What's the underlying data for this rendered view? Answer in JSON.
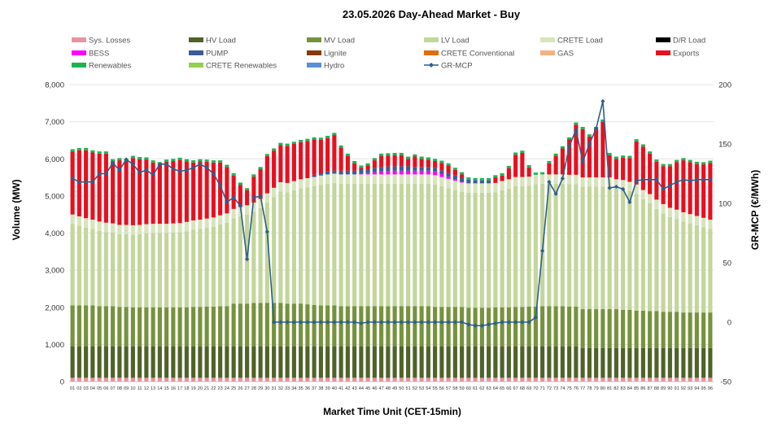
{
  "chart_data": {
    "type": "bar",
    "title": "23.05.2026  Day-Ahead Market - Buy",
    "xlabel": "Market Time Unit (CET-15min)",
    "ylabel": "Volume (MW)",
    "y2label": "GR-MCP (€/MWh)",
    "ylim": [
      0,
      8000
    ],
    "y2lim": [
      -50,
      200
    ],
    "yticks": [
      "0",
      "1,000",
      "2,000",
      "3,000",
      "4,000",
      "5,000",
      "6,000",
      "7,000",
      "8,000"
    ],
    "y2ticks": [
      "-50",
      "0",
      "50",
      "100",
      "150",
      "200"
    ],
    "categories": [
      "01",
      "02",
      "03",
      "04",
      "05",
      "06",
      "07",
      "08",
      "09",
      "10",
      "11",
      "12",
      "13",
      "14",
      "15",
      "16",
      "17",
      "18",
      "19",
      "20",
      "21",
      "22",
      "23",
      "24",
      "25",
      "26",
      "27",
      "28",
      "29",
      "30",
      "31",
      "32",
      "33",
      "34",
      "35",
      "36",
      "37",
      "38",
      "39",
      "40",
      "41",
      "42",
      "43",
      "44",
      "45",
      "46",
      "47",
      "48",
      "49",
      "50",
      "51",
      "52",
      "53",
      "54",
      "55",
      "56",
      "57",
      "58",
      "59",
      "60",
      "61",
      "62",
      "63",
      "64",
      "65",
      "66",
      "67",
      "68",
      "69",
      "70",
      "71",
      "72",
      "73",
      "74",
      "75",
      "76",
      "77",
      "78",
      "79",
      "80",
      "81",
      "82",
      "83",
      "84",
      "85",
      "86",
      "87",
      "88",
      "89",
      "90",
      "91",
      "92",
      "93",
      "94",
      "95",
      "96"
    ],
    "legend": [
      {
        "name": "Sys. Losses",
        "color": "#e6959e",
        "kind": "bar"
      },
      {
        "name": "HV Load",
        "color": "#4f6228",
        "kind": "bar"
      },
      {
        "name": "MV Load",
        "color": "#76923c",
        "kind": "bar"
      },
      {
        "name": "LV Load",
        "color": "#c3d69b",
        "kind": "bar"
      },
      {
        "name": "CRETE Load",
        "color": "#d8e4bc",
        "kind": "bar"
      },
      {
        "name": "D/R Load",
        "color": "#000000",
        "kind": "bar"
      },
      {
        "name": "BESS",
        "color": "#ff00ff",
        "kind": "bar"
      },
      {
        "name": "PUMP",
        "color": "#3c5a96",
        "kind": "bar"
      },
      {
        "name": "Lignite",
        "color": "#843c0c",
        "kind": "bar"
      },
      {
        "name": "CRETE Conventional",
        "color": "#e26b0a",
        "kind": "bar"
      },
      {
        "name": "GAS",
        "color": "#f4b183",
        "kind": "bar"
      },
      {
        "name": "Exports",
        "color": "#e80f1e",
        "kind": "bar"
      },
      {
        "name": "Renewables",
        "color": "#1db352",
        "kind": "bar"
      },
      {
        "name": "CRETE Renewables",
        "color": "#92d050",
        "kind": "bar"
      },
      {
        "name": "Hydro",
        "color": "#5b8fd6",
        "kind": "bar"
      },
      {
        "name": "GR-MCP",
        "color": "#2e5f8a",
        "kind": "line"
      }
    ],
    "series": [
      {
        "name": "Sys. Losses",
        "values": [
          100,
          100,
          100,
          100,
          100,
          100,
          100,
          100,
          100,
          100,
          100,
          100,
          100,
          100,
          100,
          100,
          100,
          100,
          100,
          100,
          100,
          100,
          100,
          100,
          100,
          100,
          100,
          100,
          100,
          100,
          100,
          100,
          100,
          100,
          100,
          100,
          100,
          100,
          100,
          100,
          100,
          100,
          100,
          100,
          100,
          100,
          100,
          100,
          100,
          100,
          100,
          100,
          100,
          100,
          100,
          100,
          100,
          100,
          100,
          100,
          100,
          100,
          100,
          100,
          100,
          100,
          100,
          100,
          100,
          100,
          100,
          100,
          100,
          100,
          100,
          100,
          100,
          100,
          100,
          100,
          100,
          100,
          100,
          100,
          100,
          100,
          100,
          100,
          100,
          100,
          100,
          100,
          100,
          100,
          100,
          100
        ]
      },
      {
        "name": "HV Load",
        "values": [
          850,
          850,
          850,
          850,
          850,
          850,
          850,
          850,
          850,
          850,
          850,
          850,
          850,
          850,
          850,
          850,
          850,
          850,
          850,
          850,
          850,
          850,
          850,
          850,
          850,
          850,
          850,
          850,
          850,
          850,
          850,
          850,
          850,
          850,
          850,
          850,
          850,
          850,
          850,
          850,
          850,
          850,
          850,
          850,
          850,
          850,
          850,
          850,
          850,
          850,
          850,
          850,
          850,
          850,
          850,
          850,
          850,
          850,
          850,
          850,
          850,
          850,
          850,
          850,
          850,
          850,
          850,
          850,
          850,
          850,
          850,
          850,
          850,
          850,
          850,
          850,
          800,
          800,
          800,
          800,
          800,
          800,
          800,
          800,
          800,
          800,
          800,
          800,
          800,
          800,
          800,
          800,
          800,
          800,
          800,
          800
        ]
      },
      {
        "name": "MV Load",
        "values": [
          1100,
          1100,
          1100,
          1100,
          1080,
          1080,
          1080,
          1060,
          1060,
          1050,
          1050,
          1050,
          1050,
          1050,
          1050,
          1050,
          1050,
          1050,
          1060,
          1060,
          1070,
          1070,
          1080,
          1080,
          1150,
          1150,
          1150,
          1170,
          1170,
          1170,
          1170,
          1170,
          1150,
          1150,
          1150,
          1130,
          1110,
          1100,
          1100,
          1100,
          1080,
          1080,
          1080,
          1080,
          1080,
          1080,
          1080,
          1080,
          1080,
          1080,
          1080,
          1080,
          1080,
          1080,
          1060,
          1060,
          1060,
          1060,
          1060,
          1040,
          1040,
          1040,
          1040,
          1050,
          1050,
          1050,
          1060,
          1060,
          1070,
          1070,
          1080,
          1080,
          1080,
          1080,
          1070,
          1070,
          1050,
          1050,
          1050,
          1050,
          1050,
          1050,
          1030,
          1030,
          1010,
          1010,
          1000,
          1000,
          980,
          980,
          980,
          960,
          960,
          960,
          960,
          960
        ]
      },
      {
        "name": "LV Load",
        "values": [
          2200,
          2150,
          2100,
          2060,
          2030,
          2000,
          1980,
          1960,
          1960,
          1960,
          1970,
          1990,
          2000,
          2000,
          2000,
          2010,
          2020,
          2050,
          2080,
          2100,
          2120,
          2150,
          2200,
          2250,
          2300,
          2350,
          2400,
          2450,
          2550,
          2700,
          2850,
          3000,
          3000,
          3050,
          3100,
          3150,
          3200,
          3250,
          3280,
          3300,
          3300,
          3300,
          3300,
          3300,
          3300,
          3300,
          3300,
          3300,
          3300,
          3300,
          3300,
          3300,
          3300,
          3300,
          3300,
          3250,
          3200,
          3150,
          3100,
          3100,
          3100,
          3100,
          3100,
          3100,
          3150,
          3200,
          3250,
          3250,
          3250,
          3300,
          3300,
          3300,
          3300,
          3300,
          3300,
          3300,
          3300,
          3300,
          3300,
          3300,
          3300,
          3250,
          3250,
          3200,
          3150,
          3000,
          2900,
          2750,
          2650,
          2550,
          2500,
          2450,
          2400,
          2350,
          2300,
          2250
        ]
      },
      {
        "name": "CRETE Load",
        "values": [
          250,
          250,
          250,
          250,
          250,
          250,
          250,
          250,
          250,
          250,
          250,
          250,
          250,
          250,
          250,
          250,
          250,
          250,
          250,
          250,
          250,
          250,
          250,
          250,
          250,
          250,
          250,
          250,
          250,
          250,
          250,
          250,
          250,
          250,
          250,
          250,
          250,
          250,
          250,
          250,
          250,
          250,
          250,
          250,
          250,
          250,
          250,
          250,
          250,
          250,
          250,
          250,
          250,
          250,
          250,
          250,
          250,
          250,
          250,
          250,
          250,
          250,
          250,
          250,
          250,
          250,
          250,
          250,
          250,
          250,
          250,
          250,
          250,
          250,
          250,
          250,
          250,
          250,
          250,
          250,
          250,
          250,
          250,
          250,
          250,
          250,
          250,
          250,
          250,
          250,
          250,
          250,
          250,
          250,
          250,
          250
        ]
      },
      {
        "name": "BESS",
        "values": [
          0,
          0,
          0,
          0,
          0,
          0,
          0,
          0,
          0,
          0,
          0,
          0,
          0,
          0,
          0,
          0,
          0,
          0,
          0,
          0,
          0,
          0,
          0,
          0,
          0,
          0,
          0,
          0,
          0,
          0,
          0,
          0,
          0,
          0,
          0,
          0,
          0,
          0,
          0,
          0,
          0,
          0,
          0,
          30,
          40,
          60,
          80,
          90,
          100,
          100,
          100,
          100,
          100,
          100,
          100,
          80,
          60,
          40,
          20,
          0,
          0,
          0,
          0,
          0,
          0,
          0,
          0,
          0,
          0,
          0,
          0,
          0,
          0,
          0,
          0,
          0,
          0,
          0,
          0,
          0,
          0,
          0,
          0,
          0,
          0,
          0,
          0,
          0,
          0,
          0,
          0,
          0,
          0,
          0,
          0,
          0
        ]
      },
      {
        "name": "PUMP",
        "values": [
          0,
          0,
          0,
          0,
          0,
          0,
          0,
          0,
          0,
          0,
          0,
          0,
          0,
          0,
          0,
          0,
          0,
          0,
          0,
          0,
          0,
          0,
          0,
          0,
          0,
          0,
          0,
          0,
          0,
          0,
          0,
          0,
          0,
          0,
          0,
          0,
          60,
          60,
          80,
          80,
          100,
          100,
          100,
          100,
          100,
          120,
          120,
          120,
          120,
          120,
          120,
          100,
          100,
          100,
          100,
          100,
          100,
          100,
          100,
          100,
          80,
          80,
          80,
          0,
          0,
          0,
          0,
          0,
          0,
          0,
          0,
          0,
          0,
          0,
          0,
          0,
          0,
          0,
          0,
          0,
          0,
          0,
          0,
          0,
          0,
          0,
          0,
          0,
          0,
          0,
          0,
          0,
          0,
          0,
          0,
          0
        ]
      },
      {
        "name": "Exports",
        "values": [
          1700,
          1780,
          1830,
          1810,
          1830,
          1860,
          1670,
          1740,
          1720,
          1810,
          1770,
          1740,
          1650,
          1600,
          1670,
          1680,
          1700,
          1630,
          1560,
          1570,
          1530,
          1480,
          1420,
          1250,
          900,
          600,
          400,
          700,
          800,
          1000,
          1000,
          1000,
          1000,
          1000,
          1000,
          1000,
          950,
          900,
          900,
          960,
          620,
          400,
          200,
          50,
          100,
          200,
          300,
          300,
          300,
          300,
          200,
          280,
          220,
          200,
          180,
          200,
          200,
          150,
          100,
          0,
          0,
          0,
          0,
          150,
          150,
          300,
          600,
          650,
          250,
          0,
          0,
          300,
          500,
          700,
          950,
          1350,
          1300,
          1100,
          1300,
          1500,
          600,
          550,
          600,
          640,
          1160,
          1170,
          1090,
          1020,
          1020,
          1120,
          1280,
          1400,
          1400,
          1400,
          1440,
          1530
        ]
      },
      {
        "name": "Renewables",
        "values": [
          60,
          60,
          60,
          60,
          60,
          60,
          60,
          60,
          60,
          60,
          60,
          60,
          60,
          60,
          60,
          60,
          60,
          60,
          60,
          60,
          60,
          60,
          60,
          60,
          60,
          60,
          60,
          60,
          60,
          60,
          60,
          60,
          60,
          60,
          60,
          60,
          60,
          60,
          60,
          60,
          60,
          60,
          60,
          60,
          60,
          60,
          60,
          60,
          60,
          60,
          60,
          60,
          60,
          60,
          60,
          60,
          60,
          60,
          60,
          60,
          60,
          60,
          60,
          60,
          60,
          60,
          60,
          60,
          60,
          60,
          60,
          60,
          60,
          60,
          60,
          60,
          60,
          60,
          60,
          60,
          60,
          60,
          60,
          60,
          60,
          60,
          60,
          60,
          60,
          60,
          60,
          60,
          60,
          60,
          60,
          60
        ]
      },
      {
        "name": "GR-MCP",
        "values": [
          121,
          118,
          118,
          118,
          125,
          125,
          134,
          128,
          137,
          133,
          126,
          128,
          124,
          133,
          133,
          129,
          127,
          128,
          130,
          133,
          130,
          125,
          115,
          101,
          105,
          98,
          53,
          105,
          106,
          76,
          0,
          0,
          0,
          0,
          0,
          0,
          0,
          0,
          0,
          0,
          0,
          0,
          0,
          -1,
          0,
          0,
          0,
          0,
          0,
          0,
          0,
          0,
          0,
          0,
          0,
          0,
          0,
          0,
          0,
          -2,
          -3,
          -3,
          -2,
          -1,
          0,
          0,
          0,
          0,
          0,
          4,
          60,
          118,
          108,
          121,
          148,
          162,
          135,
          150,
          163,
          186,
          113,
          114,
          112,
          101,
          119,
          120,
          120,
          120,
          112,
          115,
          118,
          120,
          119,
          120,
          120,
          120
        ]
      }
    ],
    "grid": "horizontal",
    "legend_position": "top"
  }
}
